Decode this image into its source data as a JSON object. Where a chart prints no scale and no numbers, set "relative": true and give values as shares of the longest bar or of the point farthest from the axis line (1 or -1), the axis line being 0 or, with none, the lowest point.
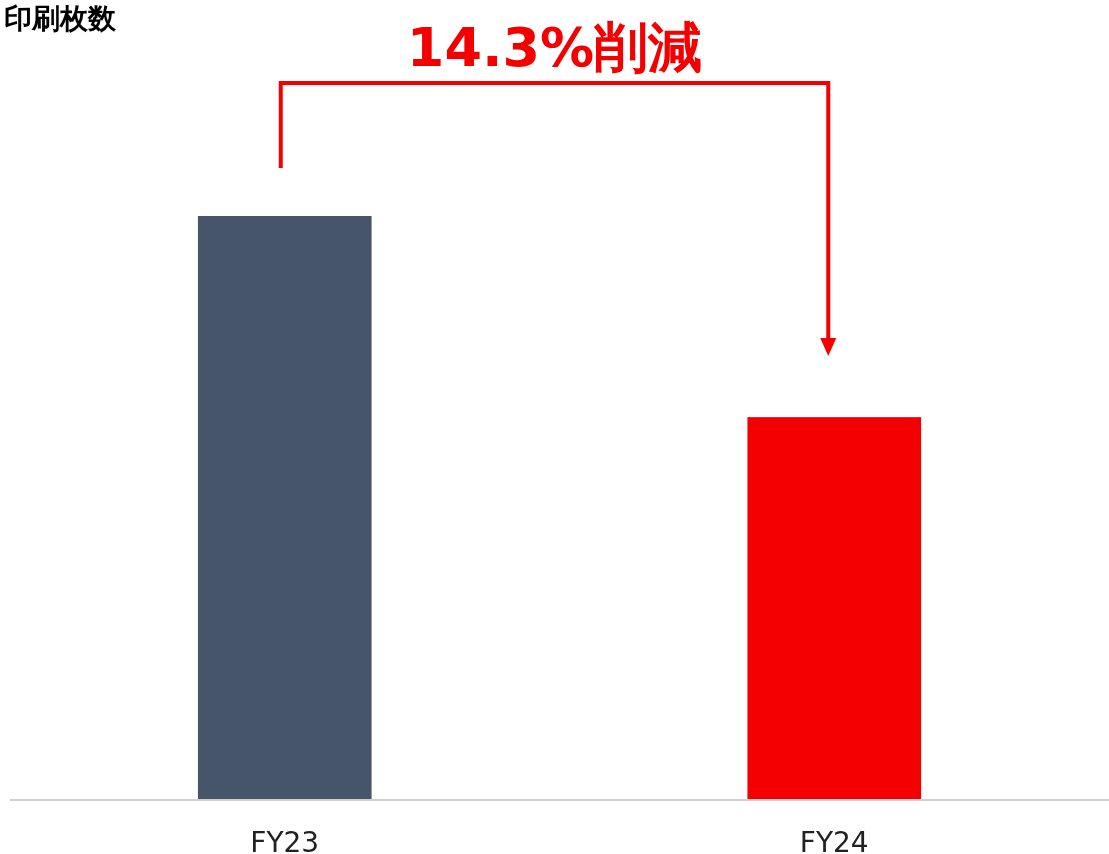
{
  "chart_data": {
    "type": "bar",
    "title": "印刷枚数",
    "categories": [
      "FY23",
      "FY24"
    ],
    "values": [
      1,
      0.655
    ],
    "colors": [
      "#465569",
      "#f50000"
    ],
    "relative": true,
    "annotations": [
      "14.3%削減"
    ]
  }
}
